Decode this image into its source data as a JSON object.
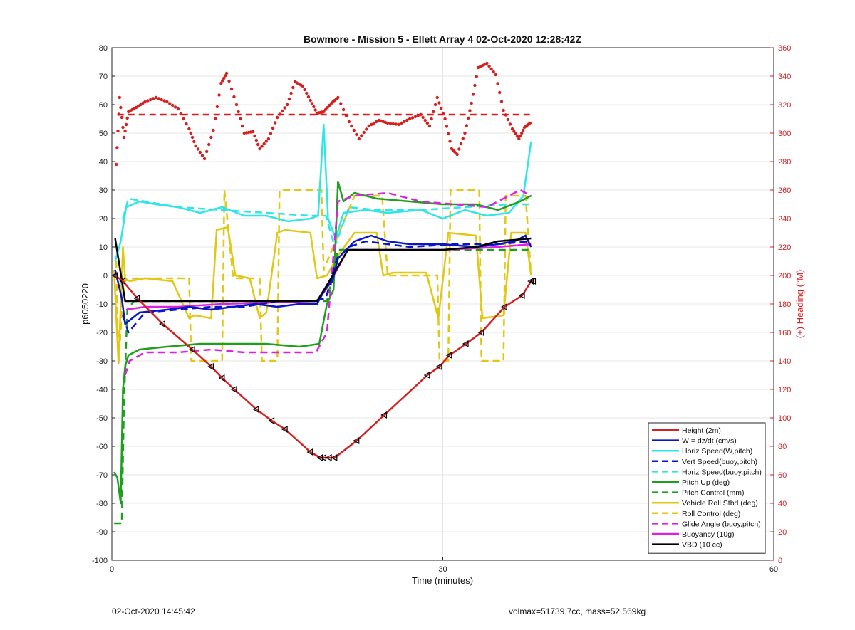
{
  "footer": {
    "timestamp": "02-Oct-2020 14:45:42",
    "vol_mass": "volmax=51739.7cc, mass=52.569kg"
  },
  "chart_data": {
    "type": "line",
    "title": "Bowmore - Mission 5 - Ellett Array 4 02-Oct-2020 12:28:42Z",
    "xlabel": "Time (minutes)",
    "ylabel_left": "p6050220",
    "ylabel_right": "(+) Heading (°M)",
    "xlim": [
      0,
      60
    ],
    "ylim_left": [
      -100,
      80
    ],
    "ylim_right": [
      0,
      360
    ],
    "xticks": [
      0,
      30,
      60
    ],
    "yticks_left": [
      -100,
      -90,
      -80,
      -70,
      -60,
      -50,
      -40,
      -30,
      -20,
      -10,
      0,
      10,
      20,
      30,
      40,
      50,
      60,
      70,
      80
    ],
    "yticks_right": [
      0,
      20,
      40,
      60,
      80,
      100,
      120,
      140,
      160,
      180,
      200,
      220,
      240,
      260,
      280,
      300,
      320,
      340,
      360
    ],
    "grid": true,
    "legend_position": "bottom-right",
    "colors": {
      "red": "#d62020",
      "blue": "#0a14c8",
      "cyan": "#2ee6e6",
      "green": "#1ea01e",
      "yellow": "#e0c814",
      "magenta": "#e020e0",
      "black": "#000000",
      "axis_right": "#d62020"
    },
    "series": [
      {
        "name": "Height (2m)",
        "color": "#d62020",
        "style": "solid",
        "axis": "left",
        "markers": "triangle",
        "x": [
          0.3,
          1.0,
          2.3,
          4.6,
          7.3,
          9.0,
          10.0,
          11.1,
          13.1,
          14.5,
          15.7,
          18.0,
          18.9,
          19.2,
          19.7,
          20.2,
          22.2,
          24.7,
          28.6,
          29.7,
          30.6,
          32.1,
          33.5,
          35.6,
          37.2,
          38.0,
          38.2
        ],
        "y": [
          0,
          -2,
          -8,
          -17,
          -26,
          -32,
          -36,
          -40,
          -47,
          -51,
          -54,
          -62,
          -64,
          -64,
          -64,
          -64,
          -58,
          -49,
          -35,
          -32,
          -28,
          -24,
          -20,
          -11,
          -7,
          -2,
          -2
        ]
      },
      {
        "name": "W = dz/dt (cm/s)",
        "color": "#0a14c8",
        "style": "solid",
        "axis": "left",
        "x": [
          0.3,
          0.9,
          1.2,
          2.5,
          5.0,
          7.0,
          9.0,
          11.0,
          13.0,
          15.0,
          17.0,
          18.6,
          19.3,
          20.0,
          20.5,
          22.0,
          23.5,
          25.0,
          27.0,
          30.0,
          33.0,
          35.0,
          36.5,
          37.5,
          38.0
        ],
        "y": [
          2,
          -8,
          -17,
          -13,
          -12,
          -11,
          -12,
          -11,
          -10,
          -11,
          -10,
          -10,
          -5,
          -2,
          6,
          12,
          14,
          12,
          11,
          11,
          10,
          11,
          12,
          14,
          10
        ]
      },
      {
        "name": "Horiz Speed(W,pitch)",
        "color": "#2ee6e6",
        "style": "solid",
        "axis": "left",
        "x": [
          0.3,
          0.8,
          1.3,
          2.5,
          4.0,
          6.0,
          8.0,
          10.0,
          12.0,
          14.0,
          16.0,
          18.0,
          18.7,
          19.2,
          19.6,
          20.3,
          21.0,
          23.0,
          25.0,
          28.0,
          30.0,
          32.0,
          34.0,
          36.0,
          37.3,
          38.0
        ],
        "y": [
          5,
          12,
          24,
          26,
          25,
          24,
          22,
          24,
          21,
          21,
          19,
          20,
          21,
          53,
          20,
          13,
          22,
          23,
          22,
          23,
          20,
          23,
          21,
          22,
          28,
          47
        ]
      },
      {
        "name": "Vert Speed(buoy,pitch)",
        "color": "#0a14c8",
        "style": "dashed",
        "axis": "left",
        "x": [
          1.0,
          1.5,
          3.0,
          6.0,
          9.0,
          12.0,
          15.0,
          18.0,
          19.4,
          20.4,
          21.5,
          23.0,
          27.0,
          31.0,
          35.0,
          38.0
        ],
        "y": [
          -14,
          -20,
          -13,
          -12,
          -11,
          -11,
          -9,
          -9,
          -8,
          6,
          10,
          12,
          10,
          11,
          11,
          12
        ]
      },
      {
        "name": "Horiz Speed(buoy,pitch)",
        "color": "#2ee6e6",
        "style": "dashed",
        "axis": "left",
        "x": [
          1.0,
          1.5,
          3.0,
          6.0,
          10.0,
          14.0,
          18.0,
          19.4,
          20.2,
          21.5,
          24.0,
          28.0,
          32.0,
          36.0,
          38.0
        ],
        "y": [
          20,
          27,
          26,
          24,
          23,
          22,
          21,
          21,
          10,
          24,
          23,
          23,
          24,
          25,
          25
        ]
      },
      {
        "name": "Pitch Up (deg)",
        "color": "#1ea01e",
        "style": "solid",
        "axis": "left",
        "x": [
          0.2,
          0.5,
          0.8,
          1.0,
          1.2,
          1.5,
          2.5,
          5.0,
          8.0,
          11.0,
          14.0,
          17.0,
          18.8,
          19.5,
          20.1,
          20.5,
          21.0,
          22.0,
          24.0,
          27.0,
          30.0,
          33.0,
          35.0,
          37.0,
          38.0
        ],
        "y": [
          -69,
          -71,
          -80,
          -40,
          -32,
          -28,
          -26,
          -25,
          -24,
          -24,
          -24,
          -25,
          -24,
          -10,
          -5,
          33,
          26,
          29,
          27,
          26,
          25,
          25,
          23,
          26,
          28
        ]
      },
      {
        "name": "Pitch Control (mm)",
        "color": "#1ea01e",
        "style": "dashed",
        "axis": "left",
        "x": [
          0.2,
          0.9,
          1.1,
          1.4,
          2.0,
          5.0,
          10.0,
          15.0,
          18.5,
          19.5,
          20.5,
          22.0,
          30.0,
          34.0,
          38.0
        ],
        "y": [
          -87,
          -87,
          -45,
          -12,
          -9,
          -9,
          -9,
          -9,
          -9,
          -9,
          9,
          9,
          9,
          9,
          9
        ]
      },
      {
        "name": "Vehicle Roll Stbd (deg)",
        "color": "#e0c814",
        "style": "solid",
        "axis": "left",
        "x": [
          0.2,
          0.6,
          1.0,
          1.2,
          1.6,
          3.0,
          5.5,
          7.0,
          7.5,
          9.0,
          9.5,
          10.5,
          11.2,
          12.5,
          13.4,
          14.0,
          15.0,
          15.7,
          18.0,
          18.6,
          19.5,
          20.5,
          22.0,
          24.0,
          24.6,
          25.5,
          28.5,
          29.6,
          30.5,
          33.0,
          33.6,
          35.5,
          36.2,
          37.5,
          38.0
        ],
        "y": [
          2,
          -31,
          10,
          -1,
          -2,
          -1,
          -2,
          -15,
          -14,
          -15,
          16,
          17,
          0,
          -1,
          -15,
          -13,
          15,
          16,
          15,
          -1,
          0,
          7,
          15,
          15,
          0,
          1,
          1,
          -15,
          15,
          14,
          -15,
          -14,
          15,
          15,
          0
        ]
      },
      {
        "name": "Roll Control (deg)",
        "color": "#e0c814",
        "style": "dashed",
        "axis": "left",
        "x": [
          0.4,
          0.6,
          1.1,
          2.0,
          7.0,
          7.2,
          10.0,
          10.2,
          11.0,
          13.4,
          13.6,
          15.0,
          15.2,
          19.0,
          19.2,
          22.0,
          24.5,
          25.0,
          29.5,
          29.7,
          30.5,
          30.7,
          33.3,
          33.5,
          35.5,
          35.7,
          37.5,
          38.0
        ],
        "y": [
          5,
          -31,
          -2,
          -1,
          -1,
          -30,
          -30,
          30,
          -1,
          -1,
          -30,
          -30,
          30,
          30,
          2,
          28,
          28,
          0,
          0,
          -30,
          -30,
          30,
          30,
          -30,
          -30,
          28,
          28,
          0
        ]
      },
      {
        "name": "Glide Angle (buoy,pitch)",
        "color": "#e020e0",
        "style": "dashed",
        "axis": "left",
        "x": [
          1.2,
          1.6,
          3.0,
          6.0,
          9.0,
          12.0,
          15.0,
          18.5,
          19.5,
          20.5,
          22.0,
          25.0,
          28.0,
          31.0,
          34.0,
          37.0,
          38.0
        ],
        "y": [
          -35,
          -30,
          -27,
          -27,
          -26,
          -27,
          -27,
          -27,
          -20,
          26,
          28,
          29,
          26,
          25,
          24,
          30,
          28
        ]
      },
      {
        "name": "Buoyancy (10g)",
        "color": "#e020e0",
        "style": "solid",
        "axis": "left",
        "x": [
          1.3,
          3.0,
          6.0,
          10.0,
          18.6,
          19.4,
          21.4,
          23.0,
          30.0,
          35.0,
          38.0
        ],
        "y": [
          -12,
          -11,
          -11,
          -10,
          -9,
          -5,
          9,
          9,
          9,
          10,
          11
        ]
      },
      {
        "name": "VBD (10 cc)",
        "color": "#000000",
        "style": "solid",
        "axis": "left",
        "x": [
          0.3,
          1.2,
          5.0,
          10.0,
          18.6,
          19.4,
          21.4,
          23.0,
          30.0,
          33.0,
          35.0,
          38.0
        ],
        "y": [
          13,
          -9,
          -9,
          -9,
          -9,
          -4,
          9,
          9,
          9,
          10,
          12,
          13
        ]
      }
    ],
    "heading": {
      "points_color": "#d62020",
      "reference_line_value": 313,
      "reference_line_x": [
        0.5,
        38.0
      ],
      "x": [
        0.4,
        0.7,
        1.1,
        1.5,
        2.2,
        3.0,
        4.0,
        5.0,
        6.0,
        7.0,
        7.6,
        8.4,
        9.2,
        9.9,
        10.4,
        11.3,
        12.0,
        12.8,
        13.4,
        14.2,
        15.0,
        15.9,
        16.6,
        17.3,
        18.0,
        18.6,
        19.2,
        19.9,
        20.5,
        21.5,
        22.4,
        23.3,
        24.2,
        25.0,
        26.0,
        27.0,
        28.0,
        28.8,
        29.5,
        30.2,
        30.8,
        31.3,
        32.0,
        32.6,
        33.2,
        34.0,
        34.8,
        35.5,
        36.3,
        36.9,
        37.4,
        37.9
      ],
      "y": [
        278,
        325,
        297,
        315,
        318,
        322,
        325,
        322,
        317,
        303,
        291,
        282,
        302,
        335,
        342,
        320,
        300,
        301,
        289,
        296,
        311,
        320,
        336,
        333,
        323,
        314,
        315,
        321,
        325,
        308,
        296,
        305,
        309,
        307,
        306,
        310,
        313,
        305,
        325,
        310,
        289,
        285,
        300,
        321,
        346,
        349,
        341,
        316,
        303,
        296,
        304,
        307
      ]
    }
  }
}
